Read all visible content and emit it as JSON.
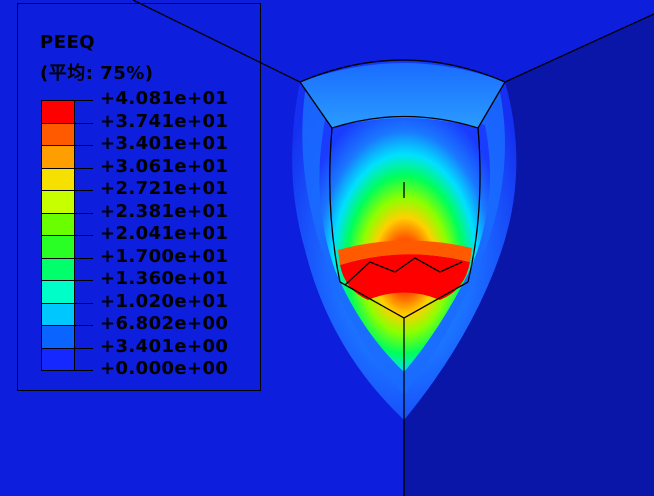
{
  "legend": {
    "title": "PEEQ",
    "subtitle": "(平均: 75%)",
    "labels": [
      "+4.081e+01",
      "+3.741e+01",
      "+3.401e+01",
      "+3.061e+01",
      "+2.721e+01",
      "+2.381e+01",
      "+2.041e+01",
      "+1.700e+01",
      "+1.360e+01",
      "+1.020e+01",
      "+6.802e+00",
      "+3.401e+00",
      "+0.000e+00"
    ],
    "colors": [
      "#ff0000",
      "#ff5a00",
      "#ff9e00",
      "#f5e000",
      "#c8ff00",
      "#6aff00",
      "#2aff25",
      "#00ff6a",
      "#00ffc8",
      "#00c8ff",
      "#0a64ff",
      "#1428ff"
    ]
  },
  "colors": {
    "background": "#0d1fdc",
    "block_dark": "#0a16a8"
  }
}
